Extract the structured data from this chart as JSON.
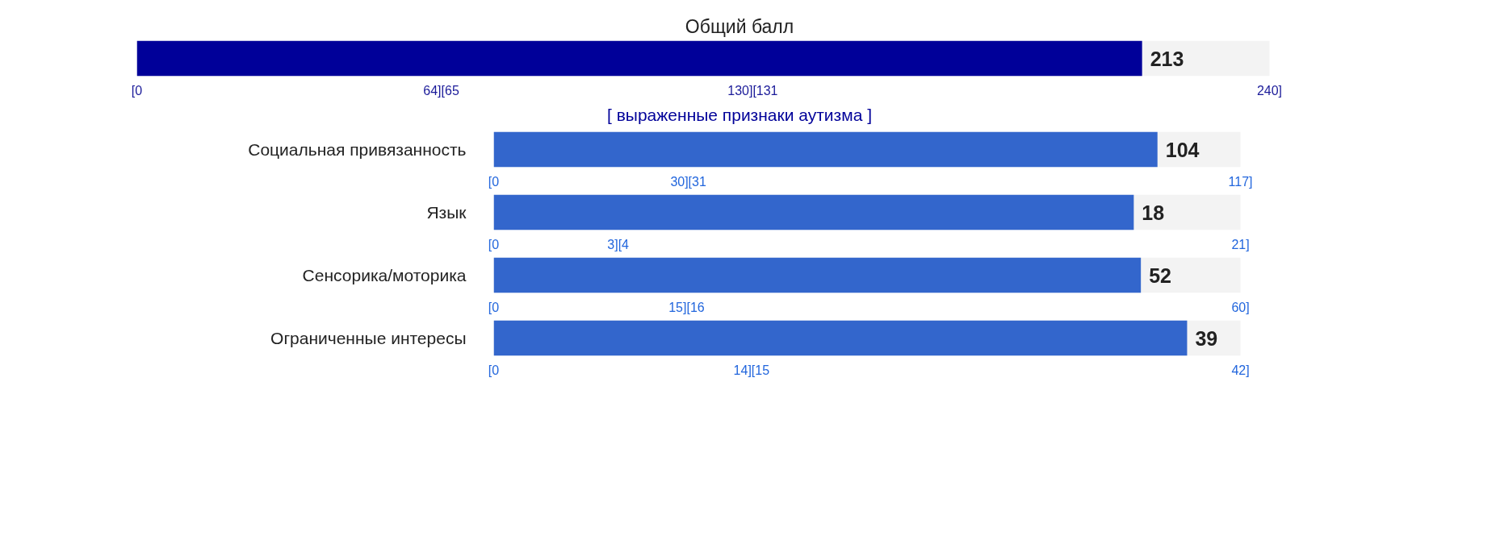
{
  "chart_data": [
    {
      "type": "bar",
      "orientation": "horizontal",
      "title": "Общий балл",
      "categories": [
        null
      ],
      "values": [
        213
      ],
      "color": "#000099",
      "xlim": [
        0,
        240
      ],
      "xticks": [
        {
          "value": 0,
          "label": "[0"
        },
        {
          "value": 64.5,
          "label": "64][65"
        },
        {
          "value": 130.5,
          "label": "130][131"
        },
        {
          "value": 240,
          "label": "240]"
        }
      ],
      "data_labels": true,
      "bands": [
        {
          "axis": "x",
          "from": 0,
          "to": 240,
          "color": "#f3f3f3"
        }
      ],
      "annotations": [
        "[ выраженные признаки аутизма ]"
      ]
    },
    {
      "type": "bar",
      "orientation": "horizontal",
      "categories": [
        "Социальная привязанность"
      ],
      "values": [
        104
      ],
      "color": "#3366cc",
      "xlim": [
        0,
        117
      ],
      "xticks": [
        {
          "value": 0,
          "label": "[0"
        },
        {
          "value": 30.5,
          "label": "30][31"
        },
        {
          "value": 117,
          "label": "117]"
        }
      ],
      "data_labels": true,
      "bands": [
        {
          "axis": "x",
          "from": 0,
          "to": 117,
          "color": "#f3f3f3"
        }
      ]
    },
    {
      "type": "bar",
      "orientation": "horizontal",
      "categories": [
        "Язык"
      ],
      "values": [
        18
      ],
      "color": "#3366cc",
      "xlim": [
        0,
        21
      ],
      "xticks": [
        {
          "value": 0,
          "label": "[0"
        },
        {
          "value": 3.5,
          "label": "3][4"
        },
        {
          "value": 21,
          "label": "21]"
        }
      ],
      "data_labels": true,
      "bands": [
        {
          "axis": "x",
          "from": 0,
          "to": 21,
          "color": "#f3f3f3"
        }
      ]
    },
    {
      "type": "bar",
      "orientation": "horizontal",
      "categories": [
        "Сенсорика/моторика"
      ],
      "values": [
        52
      ],
      "color": "#3366cc",
      "xlim": [
        0,
        60
      ],
      "xticks": [
        {
          "value": 0,
          "label": "[0"
        },
        {
          "value": 15.5,
          "label": "15][16"
        },
        {
          "value": 60,
          "label": "60]"
        }
      ],
      "data_labels": true,
      "bands": [
        {
          "axis": "x",
          "from": 0,
          "to": 60,
          "color": "#f3f3f3"
        }
      ]
    },
    {
      "type": "bar",
      "orientation": "horizontal",
      "categories": [
        "Ограниченные интересы"
      ],
      "values": [
        39
      ],
      "color": "#3366cc",
      "xlim": [
        0,
        42
      ],
      "xticks": [
        {
          "value": 0,
          "label": "[0"
        },
        {
          "value": 14.5,
          "label": "14][15"
        },
        {
          "value": 42,
          "label": "42]"
        }
      ],
      "data_labels": true,
      "bands": [
        {
          "axis": "x",
          "from": 0,
          "to": 42,
          "color": "#f3f3f3"
        }
      ]
    }
  ]
}
